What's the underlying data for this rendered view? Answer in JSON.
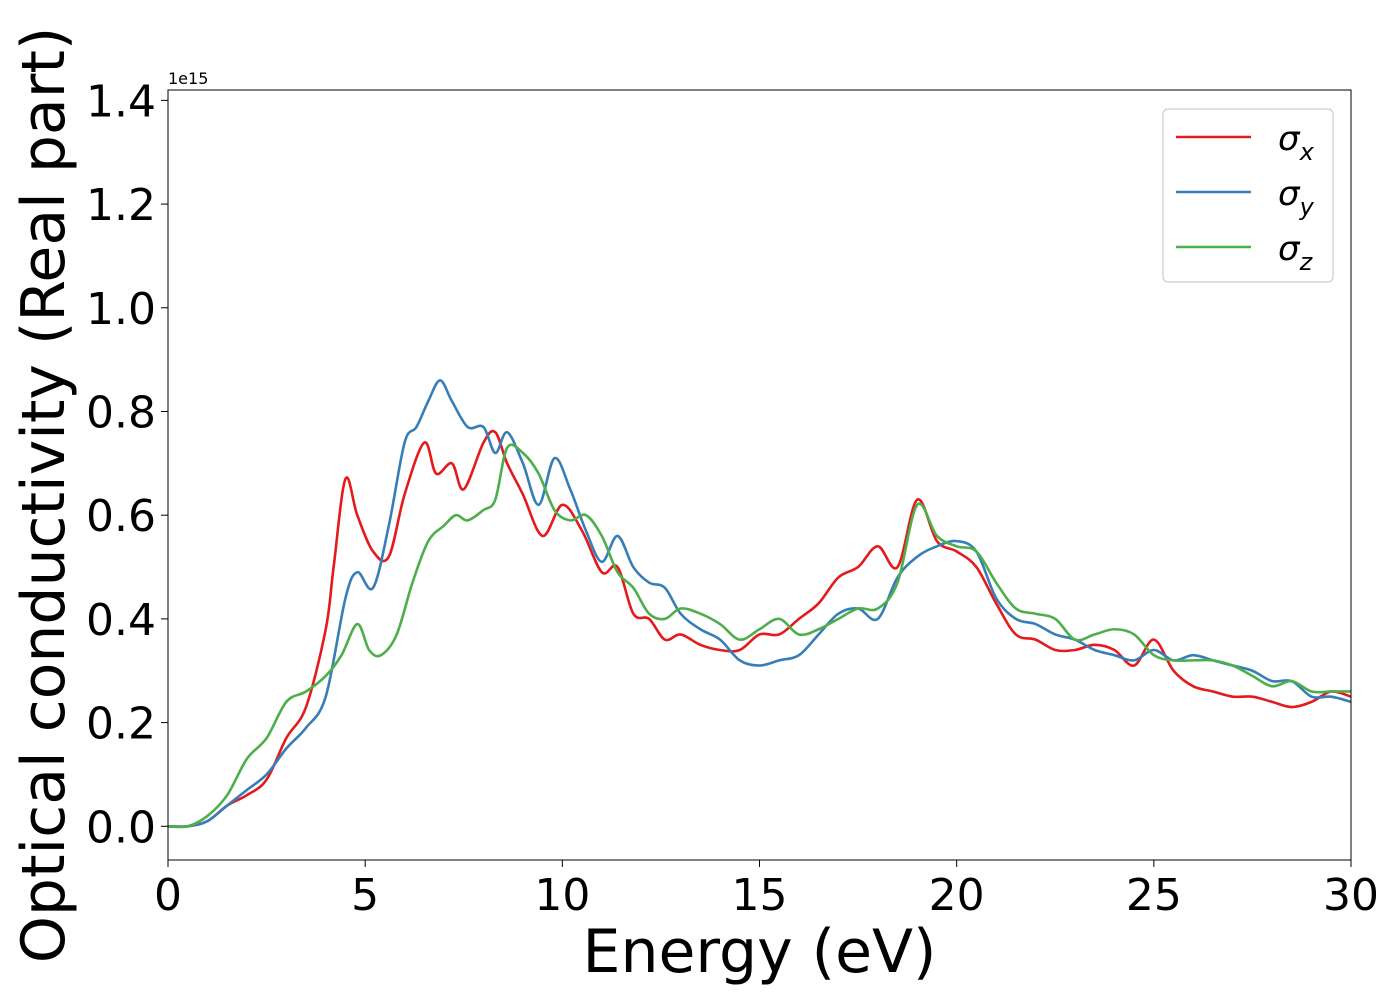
{
  "chart_data": {
    "type": "line",
    "xlabel": "Energy (eV)",
    "ylabel": "Optical conductivity (Real part)",
    "y_offset_label": "1e15",
    "xlim": [
      0,
      30
    ],
    "ylim": [
      -0.065,
      1.42
    ],
    "x_ticks": [
      0,
      5,
      10,
      15,
      20,
      25,
      30
    ],
    "x_tick_labels": [
      "0",
      "5",
      "10",
      "15",
      "20",
      "25",
      "30"
    ],
    "y_ticks": [
      0.0,
      0.2,
      0.4,
      0.6,
      0.8,
      1.0,
      1.2,
      1.4
    ],
    "y_tick_labels": [
      "0.0",
      "0.2",
      "0.4",
      "0.6",
      "0.8",
      "1.0",
      "1.2",
      "1.4"
    ],
    "grid": false,
    "legend_position": "top-right",
    "series": [
      {
        "name": "σ",
        "subscript": "x",
        "color": "#e41a1c",
        "x": [
          0,
          0.5,
          1,
          1.5,
          2,
          2.5,
          3,
          3.5,
          4,
          4.2,
          4.5,
          4.8,
          5.2,
          5.6,
          6,
          6.5,
          6.8,
          7.2,
          7.5,
          8,
          8.3,
          8.6,
          9,
          9.5,
          10,
          10.5,
          11,
          11.4,
          11.8,
          12.2,
          12.6,
          13,
          13.5,
          14,
          14.5,
          15,
          15.5,
          16,
          16.5,
          17,
          17.5,
          18,
          18.5,
          19,
          19.5,
          20,
          20.5,
          21,
          21.5,
          22,
          22.5,
          23,
          23.5,
          24,
          24.5,
          25,
          25.5,
          26,
          26.5,
          27,
          27.5,
          28,
          28.5,
          29,
          29.5,
          30
        ],
        "y": [
          0.0,
          0.0,
          0.01,
          0.04,
          0.06,
          0.09,
          0.17,
          0.23,
          0.38,
          0.5,
          0.67,
          0.6,
          0.53,
          0.52,
          0.64,
          0.74,
          0.68,
          0.7,
          0.65,
          0.74,
          0.76,
          0.7,
          0.64,
          0.56,
          0.62,
          0.57,
          0.49,
          0.5,
          0.41,
          0.4,
          0.36,
          0.37,
          0.35,
          0.34,
          0.34,
          0.37,
          0.37,
          0.4,
          0.43,
          0.48,
          0.5,
          0.54,
          0.5,
          0.63,
          0.55,
          0.53,
          0.5,
          0.43,
          0.37,
          0.36,
          0.34,
          0.34,
          0.35,
          0.34,
          0.31,
          0.36,
          0.3,
          0.27,
          0.26,
          0.25,
          0.25,
          0.24,
          0.23,
          0.24,
          0.26,
          0.25
        ]
      },
      {
        "name": "σ",
        "subscript": "y",
        "color": "#377eb8",
        "x": [
          0,
          0.5,
          1,
          1.5,
          2,
          2.5,
          3,
          3.5,
          4,
          4.5,
          4.8,
          5.2,
          5.6,
          6,
          6.3,
          6.6,
          6.9,
          7.2,
          7.6,
          8,
          8.3,
          8.6,
          9,
          9.4,
          9.8,
          10.2,
          10.6,
          11,
          11.4,
          11.8,
          12.2,
          12.6,
          13,
          13.5,
          14,
          14.5,
          15,
          15.5,
          16,
          16.5,
          17,
          17.5,
          18,
          18.5,
          19,
          19.5,
          20,
          20.5,
          21,
          21.5,
          22,
          22.5,
          23,
          23.5,
          24,
          24.5,
          25,
          25.5,
          26,
          26.5,
          27,
          27.5,
          28,
          28.5,
          29,
          29.5,
          30
        ],
        "y": [
          0.0,
          0.0,
          0.01,
          0.04,
          0.07,
          0.1,
          0.15,
          0.19,
          0.25,
          0.44,
          0.49,
          0.46,
          0.58,
          0.74,
          0.77,
          0.82,
          0.86,
          0.82,
          0.77,
          0.77,
          0.72,
          0.76,
          0.7,
          0.62,
          0.71,
          0.65,
          0.57,
          0.51,
          0.56,
          0.5,
          0.47,
          0.46,
          0.41,
          0.38,
          0.36,
          0.32,
          0.31,
          0.32,
          0.33,
          0.37,
          0.41,
          0.42,
          0.4,
          0.48,
          0.52,
          0.54,
          0.55,
          0.53,
          0.44,
          0.4,
          0.39,
          0.37,
          0.36,
          0.34,
          0.33,
          0.32,
          0.34,
          0.32,
          0.33,
          0.32,
          0.31,
          0.3,
          0.28,
          0.28,
          0.25,
          0.25,
          0.24
        ]
      },
      {
        "name": "σ",
        "subscript": "z",
        "color": "#4daf4a",
        "x": [
          0,
          0.5,
          1,
          1.5,
          2,
          2.5,
          3,
          3.5,
          4,
          4.4,
          4.8,
          5.1,
          5.4,
          5.8,
          6.2,
          6.6,
          7,
          7.3,
          7.6,
          8,
          8.3,
          8.6,
          9,
          9.4,
          9.8,
          10.2,
          10.6,
          11,
          11.4,
          11.8,
          12.2,
          12.6,
          13,
          13.5,
          14,
          14.5,
          15,
          15.5,
          16,
          16.5,
          17,
          17.5,
          18,
          18.5,
          19,
          19.5,
          20,
          20.5,
          21,
          21.5,
          22,
          22.5,
          23,
          23.5,
          24,
          24.5,
          25,
          25.5,
          26,
          26.5,
          27,
          27.5,
          28,
          28.5,
          29,
          29.5,
          30
        ],
        "y": [
          0.0,
          0.0,
          0.02,
          0.06,
          0.13,
          0.17,
          0.24,
          0.26,
          0.29,
          0.33,
          0.39,
          0.34,
          0.33,
          0.37,
          0.47,
          0.55,
          0.58,
          0.6,
          0.59,
          0.61,
          0.63,
          0.73,
          0.72,
          0.68,
          0.61,
          0.59,
          0.6,
          0.56,
          0.49,
          0.46,
          0.41,
          0.4,
          0.42,
          0.41,
          0.39,
          0.36,
          0.38,
          0.4,
          0.37,
          0.38,
          0.4,
          0.42,
          0.42,
          0.47,
          0.62,
          0.56,
          0.54,
          0.53,
          0.47,
          0.42,
          0.41,
          0.4,
          0.36,
          0.37,
          0.38,
          0.37,
          0.33,
          0.32,
          0.32,
          0.32,
          0.31,
          0.29,
          0.27,
          0.28,
          0.26,
          0.26,
          0.26
        ]
      }
    ]
  }
}
